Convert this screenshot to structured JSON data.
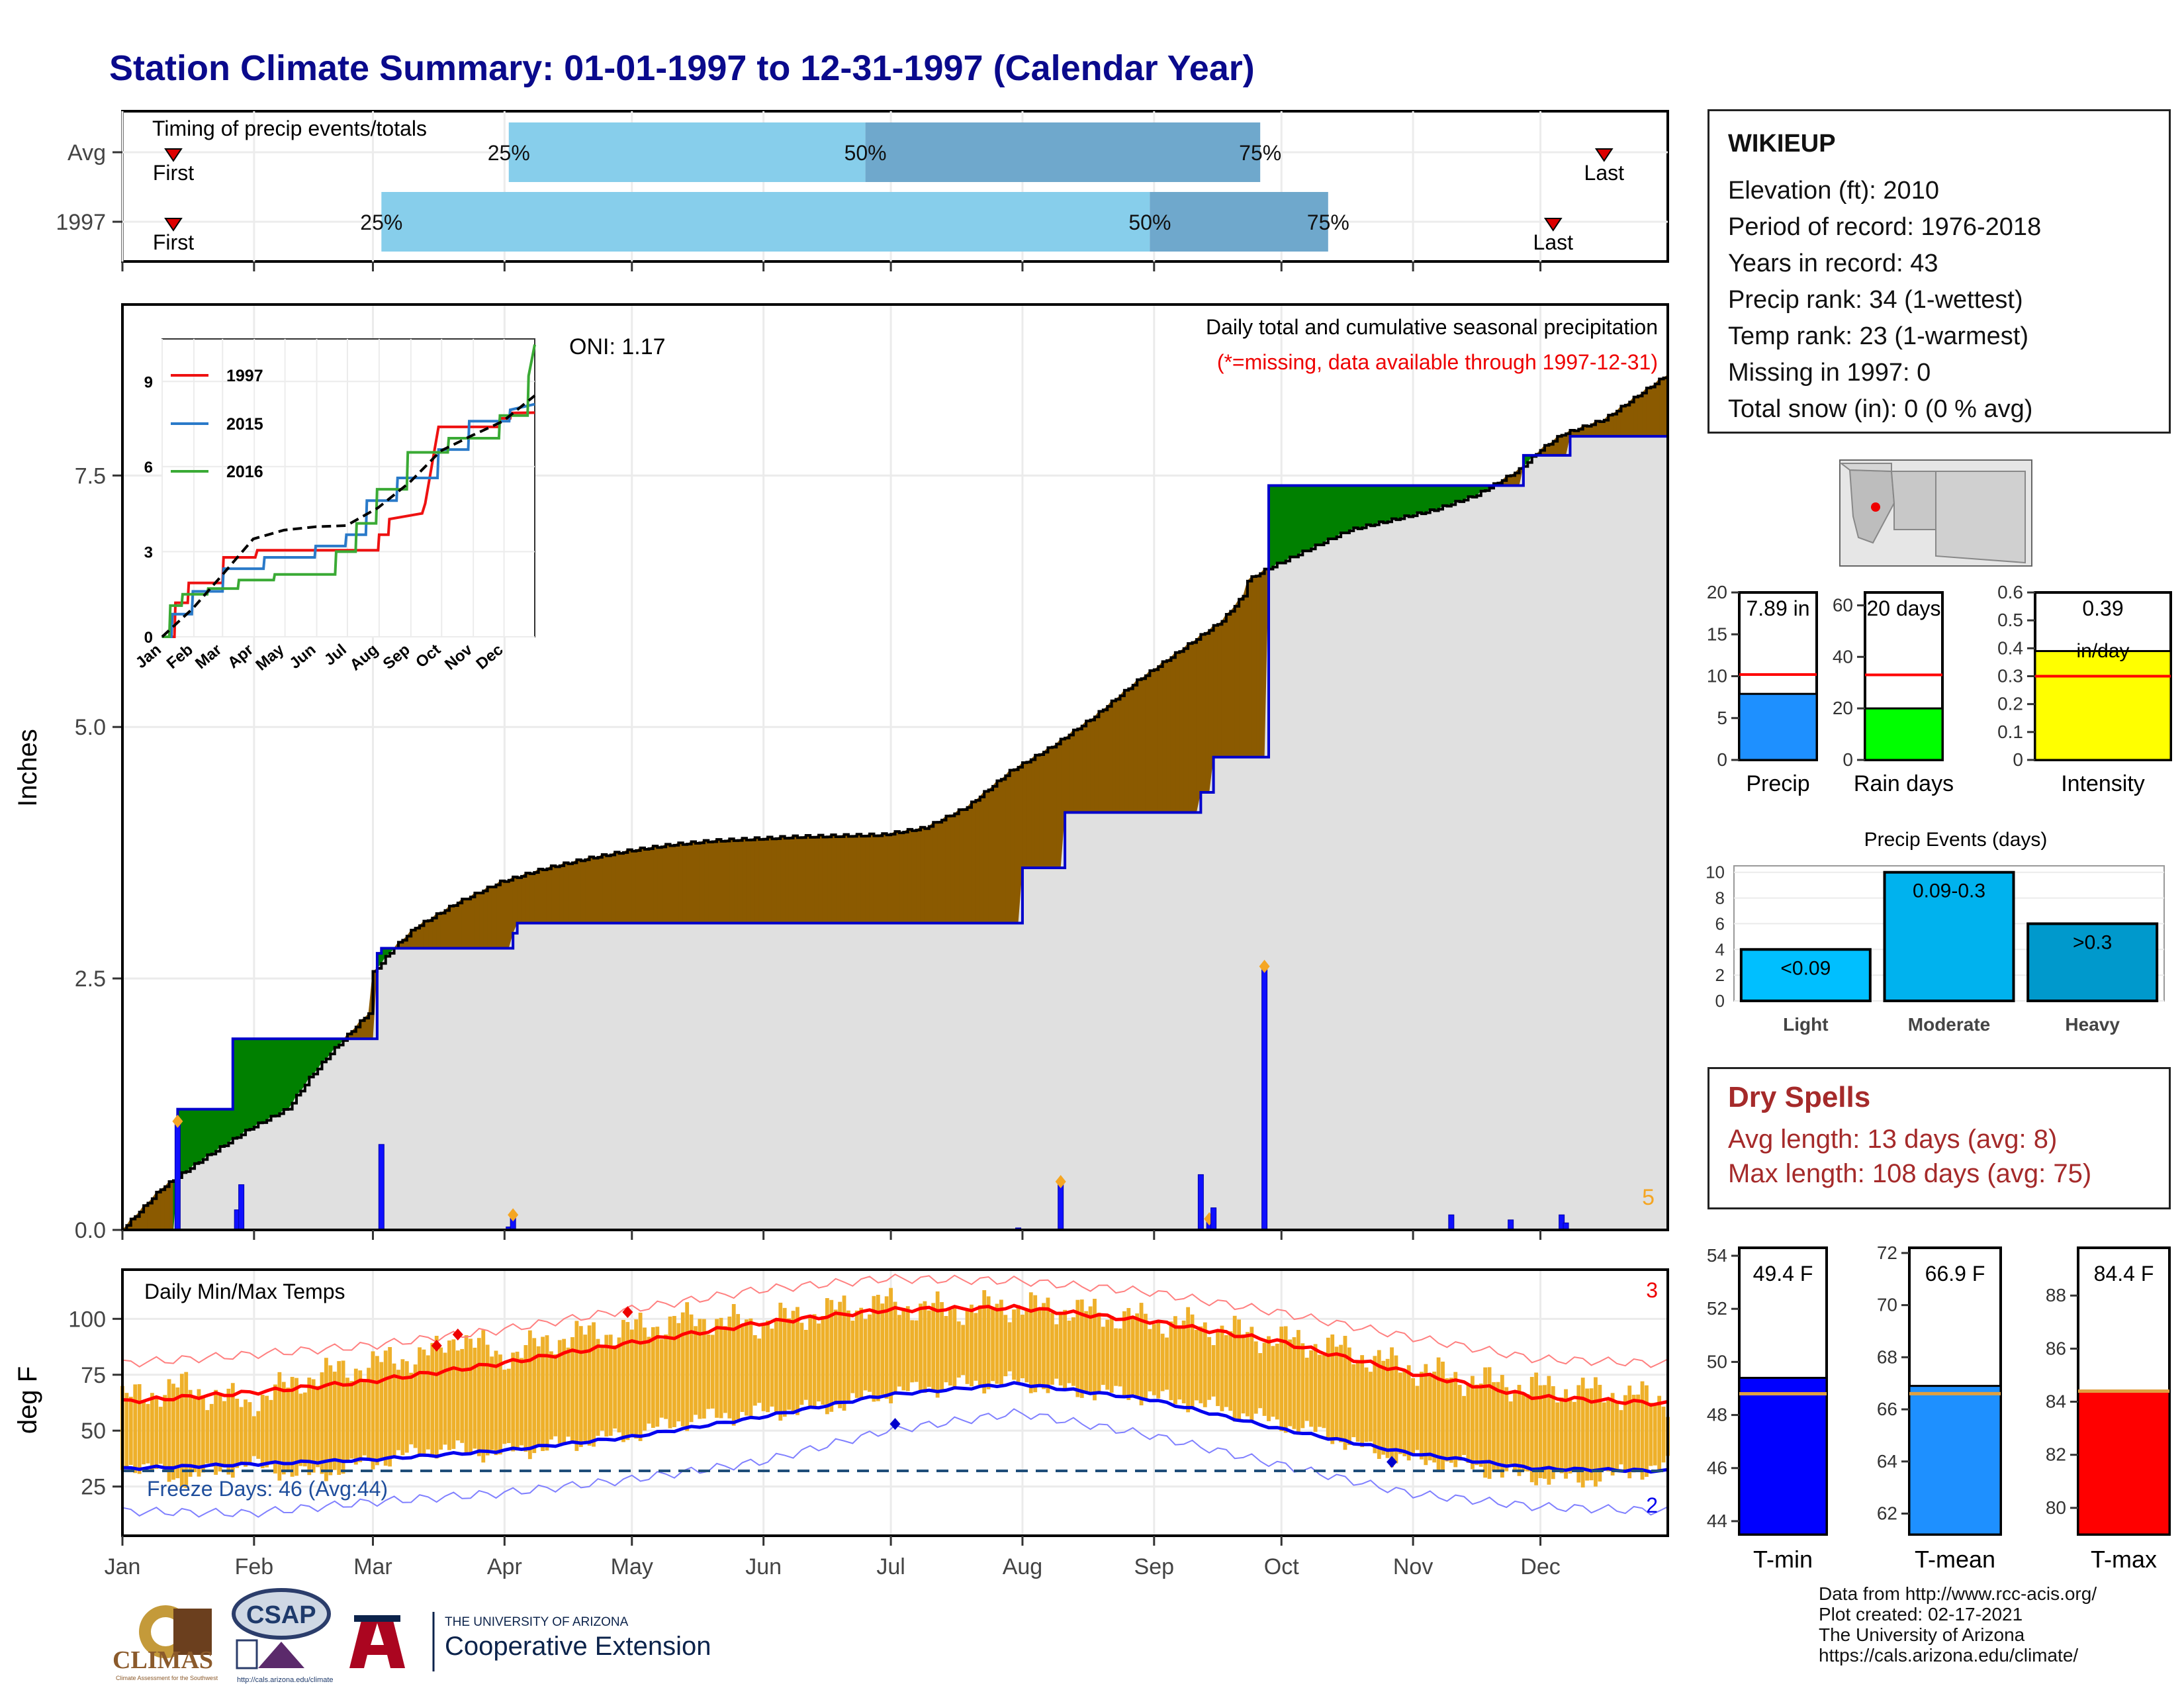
{
  "title": "Station Climate Summary: 01-01-1997 to 12-31-1997 (Calendar Year)",
  "colors": {
    "title": "#0a0a8c",
    "cum_obs": "#0000cc",
    "above_avg": "#008000",
    "below_avg": "#8b5a00",
    "fill_area": "#e0e0e0",
    "daily_bar": "#1010ff",
    "big_event": "#f5a623",
    "temp_band": "#eeb02a",
    "tmax_line": "#ff0000",
    "tmin_line": "#0000ee",
    "freeze_line": "#1f4e79",
    "light_blue": "#87ceeb",
    "mid_blue": "#6fa8cc",
    "precip_gauge": "#1e90ff",
    "raindays_gauge": "#00ff00",
    "intensity_gauge": "#ffff00",
    "light_bar": "#00bfff",
    "moderate_bar": "#00b2ee",
    "heavy_bar": "#0099cc",
    "dry_text": "#a52a2a"
  },
  "months": [
    "Jan",
    "Feb",
    "Mar",
    "Apr",
    "May",
    "Jun",
    "Jul",
    "Aug",
    "Sep",
    "Oct",
    "Nov",
    "Dec"
  ],
  "timing": {
    "label": "Timing of precip events/totals",
    "rows": [
      {
        "label": "Avg",
        "first_day": 13,
        "last_day": 350,
        "p25": 92,
        "p50": 176,
        "p75": 269
      },
      {
        "label": "1997",
        "first_day": 13,
        "last_day": 338,
        "p25": 62,
        "p50": 243,
        "p75": 285
      }
    ],
    "pct_labels": [
      "25%",
      "50%",
      "75%"
    ],
    "first_label": "First",
    "last_label": "Last"
  },
  "precip_panel": {
    "ylabel": "Inches",
    "ytick_labels": [
      "0.0",
      "2.5",
      "5.0",
      "7.5"
    ],
    "yticks": [
      0,
      2.5,
      5.0,
      7.5
    ],
    "ylim": [
      0,
      9.2
    ],
    "oni": "ONI: 1.17",
    "subtitle": "Daily total and cumulative seasonal precipitation",
    "missing_note": "(*=missing, data available through 1997-12-31)",
    "corner_count": "5"
  },
  "chart_data": [
    {
      "type": "area",
      "name": "cumulative precipitation",
      "x_unit": "day of year",
      "series": [
        {
          "name": "avg_cumulative",
          "x": [
            1,
            10,
            20,
            31,
            40,
            45,
            50,
            59,
            60,
            65,
            70,
            80,
            90,
            100,
            110,
            120,
            130,
            140,
            150,
            160,
            170,
            180,
            190,
            200,
            210,
            220,
            230,
            240,
            250,
            260,
            265,
            266,
            270,
            275,
            280,
            290,
            300,
            310,
            320,
            330,
            335,
            340,
            350,
            355,
            360,
            365
          ],
          "y": [
            0,
            0.4,
            0.7,
            1.0,
            1.2,
            1.5,
            1.75,
            2.15,
            2.55,
            2.8,
            3.0,
            3.25,
            3.45,
            3.58,
            3.68,
            3.76,
            3.82,
            3.86,
            3.88,
            3.9,
            3.91,
            3.92,
            3.99,
            4.2,
            4.55,
            4.8,
            5.1,
            5.45,
            5.75,
            6.05,
            6.3,
            6.45,
            6.55,
            6.65,
            6.75,
            6.95,
            7.05,
            7.15,
            7.3,
            7.55,
            7.75,
            7.9,
            8.05,
            8.2,
            8.35,
            8.5
          ]
        },
        {
          "name": "obs_1997_cumulative",
          "x": [
            1,
            13,
            14,
            26,
            27,
            60,
            61,
            62,
            92,
            93,
            94,
            212,
            213,
            222,
            223,
            254,
            255,
            257,
            258,
            270,
            271,
            330,
            331,
            341,
            342,
            365
          ],
          "y": [
            0,
            0,
            1.2,
            1.2,
            1.9,
            1.9,
            2.75,
            2.8,
            2.8,
            2.95,
            3.05,
            3.05,
            3.6,
            3.6,
            4.15,
            4.15,
            4.35,
            4.35,
            4.7,
            4.7,
            7.4,
            7.4,
            7.7,
            7.7,
            7.89,
            7.89
          ]
        }
      ]
    },
    {
      "type": "bar",
      "name": "daily precipitation",
      "x_unit": "day of year",
      "days": [
        14,
        28,
        29,
        62,
        92,
        93,
        212,
        222,
        255,
        257,
        258,
        270,
        314,
        328,
        340,
        341
      ],
      "values": [
        1.08,
        0.2,
        0.45,
        0.85,
        0.03,
        0.15,
        0.02,
        0.48,
        0.55,
        0.11,
        0.22,
        2.62,
        0.15,
        0.1,
        0.15,
        0.07
      ]
    },
    {
      "type": "line",
      "name": "inset cumulative",
      "xticks": [
        "Jan",
        "Feb",
        "Mar",
        "Apr",
        "May",
        "Jun",
        "Jul",
        "Aug",
        "Sep",
        "Oct",
        "Nov",
        "Dec"
      ],
      "yticks": [
        0,
        3,
        6,
        9
      ],
      "ylim": [
        0,
        10.5
      ],
      "series": [
        {
          "name": "1997",
          "x": [
            1,
            13,
            14,
            26,
            27,
            60,
            61,
            92,
            94,
            212,
            213,
            222,
            223,
            255,
            258,
            271,
            330,
            331,
            341,
            342,
            365
          ],
          "y": [
            0,
            0,
            1.2,
            1.2,
            1.9,
            1.9,
            2.8,
            2.8,
            3.05,
            3.05,
            3.6,
            3.6,
            4.15,
            4.35,
            4.7,
            7.4,
            7.4,
            7.7,
            7.7,
            7.89,
            7.9
          ]
        },
        {
          "name": "2015",
          "x": [
            1,
            10,
            11,
            30,
            31,
            60,
            61,
            100,
            101,
            150,
            151,
            180,
            181,
            200,
            201,
            230,
            231,
            270,
            271,
            300,
            301,
            340,
            341,
            365
          ],
          "y": [
            0,
            0,
            0.8,
            0.8,
            1.6,
            1.6,
            2.4,
            2.4,
            2.8,
            2.8,
            3.2,
            3.2,
            3.6,
            3.6,
            4.8,
            4.8,
            5.6,
            5.6,
            6.6,
            6.6,
            7.6,
            7.6,
            8.0,
            8.2
          ]
        },
        {
          "name": "2016",
          "x": [
            1,
            8,
            9,
            20,
            21,
            45,
            46,
            75,
            76,
            110,
            111,
            170,
            171,
            190,
            191,
            210,
            211,
            240,
            241,
            280,
            281,
            330,
            331,
            358,
            359,
            365
          ],
          "y": [
            0,
            0,
            1.1,
            1.1,
            1.5,
            1.5,
            1.7,
            1.7,
            2.0,
            2.0,
            2.2,
            2.2,
            3.0,
            3.0,
            4.0,
            4.0,
            5.2,
            5.2,
            6.5,
            6.5,
            7.0,
            7.0,
            7.8,
            7.8,
            9.2,
            10.3
          ]
        },
        {
          "name": "avg",
          "x": [
            1,
            31,
            59,
            90,
            120,
            151,
            181,
            212,
            243,
            273,
            304,
            334,
            365
          ],
          "y": [
            0,
            1.0,
            2.15,
            3.45,
            3.76,
            3.88,
            3.92,
            4.55,
            5.45,
            6.55,
            7.1,
            7.6,
            8.5
          ]
        }
      ]
    },
    {
      "type": "line",
      "name": "daily min/max temps",
      "ylabel": "deg F",
      "yticks": [
        25,
        50,
        75,
        100
      ],
      "ylim": [
        3,
        122
      ],
      "x_unit": "day of year",
      "series": [
        {
          "name": "tmax_normal",
          "x": [
            1,
            31,
            59,
            90,
            120,
            151,
            181,
            212,
            243,
            273,
            304,
            334,
            365
          ],
          "y": [
            63,
            67,
            72,
            80,
            89,
            98,
            104,
            105,
            99,
            90,
            76,
            65,
            62
          ]
        },
        {
          "name": "tmin_normal",
          "x": [
            1,
            31,
            59,
            90,
            120,
            151,
            181,
            212,
            243,
            273,
            304,
            334,
            365
          ],
          "y": [
            33,
            35,
            37,
            41,
            47,
            56,
            66,
            71,
            64,
            51,
            40,
            33,
            32
          ]
        },
        {
          "name": "tmax_record",
          "x": [
            1,
            31,
            59,
            90,
            120,
            151,
            181,
            212,
            243,
            273,
            304,
            334,
            365
          ],
          "y": [
            80,
            84,
            88,
            95,
            104,
            113,
            118,
            117,
            112,
            103,
            92,
            82,
            80
          ]
        },
        {
          "name": "tmin_record",
          "x": [
            1,
            31,
            59,
            90,
            120,
            151,
            181,
            212,
            243,
            273,
            304,
            334,
            365
          ],
          "y": [
            14,
            13,
            18,
            22,
            28,
            36,
            50,
            58,
            48,
            35,
            22,
            16,
            14
          ]
        },
        {
          "name": "tmax_1997",
          "x": [
            1,
            15,
            30,
            45,
            60,
            75,
            80,
            90,
            105,
            120,
            135,
            150,
            165,
            180,
            195,
            210,
            225,
            240,
            255,
            270,
            285,
            300,
            315,
            330,
            345,
            365
          ],
          "y": [
            64,
            70,
            62,
            74,
            80,
            85,
            93,
            83,
            92,
            95,
            100,
            98,
            103,
            107,
            104,
            106,
            104,
            100,
            97,
            92,
            88,
            80,
            74,
            70,
            68,
            64
          ]
        },
        {
          "name": "tmin_1997",
          "x": [
            1,
            15,
            30,
            45,
            60,
            75,
            90,
            105,
            120,
            135,
            150,
            165,
            180,
            195,
            210,
            225,
            240,
            255,
            270,
            285,
            300,
            315,
            330,
            345,
            365
          ],
          "y": [
            36,
            28,
            35,
            30,
            36,
            42,
            40,
            44,
            48,
            55,
            58,
            60,
            66,
            70,
            72,
            68,
            66,
            62,
            55,
            48,
            38,
            35,
            30,
            28,
            34
          ]
        }
      ],
      "freeze_line": 32,
      "freeze_label": "Freeze Days: 46 (Avg:44)",
      "corner_top": "3",
      "corner_bottom": "2",
      "panel_label": "Daily Min/Max Temps"
    },
    {
      "type": "bar",
      "name": "precip gauges",
      "gauges": [
        {
          "label": "Precip",
          "value": 7.89,
          "avg": 10.2,
          "text": "7.89 in",
          "yticks": [
            0,
            5,
            10,
            15,
            20
          ],
          "ylim": [
            0,
            20
          ]
        },
        {
          "label": "Rain days",
          "value": 20,
          "avg": 33,
          "text": "20 days",
          "yticks": [
            0,
            20,
            40,
            60
          ],
          "ylim": [
            0,
            65
          ]
        },
        {
          "label": "Intensity",
          "value": 0.39,
          "avg": 0.3,
          "text": "0.39",
          "subtext": "in/day",
          "yticks": [
            0.0,
            0.1,
            0.2,
            0.3,
            0.4,
            0.5,
            0.6
          ],
          "ylim": [
            0,
            0.6
          ]
        }
      ]
    },
    {
      "type": "bar",
      "name": "Precip Events (days)",
      "title": "Precip Events (days)",
      "categories": [
        "Light",
        "Moderate",
        "Heavy"
      ],
      "bar_labels": [
        "<0.09",
        "0.09-0.3",
        ">0.3"
      ],
      "values": [
        4,
        10,
        6
      ],
      "yticks": [
        0,
        2,
        4,
        6,
        8,
        10
      ],
      "ylim": [
        0,
        10.5
      ]
    },
    {
      "type": "bar",
      "name": "temperature gauges",
      "gauges": [
        {
          "label": "T-min",
          "value": 49.4,
          "avg": 48.8,
          "text": "49.4 F",
          "yticks": [
            44,
            46,
            48,
            50,
            52,
            54
          ],
          "ylim": [
            43.5,
            54.3
          ]
        },
        {
          "label": "T-mean",
          "value": 66.9,
          "avg": 66.6,
          "text": "66.9 F",
          "yticks": [
            62,
            64,
            66,
            68,
            70,
            72
          ],
          "ylim": [
            61.2,
            72.2
          ]
        },
        {
          "label": "T-max",
          "value": 84.4,
          "avg": 84.4,
          "text": "84.4 F",
          "yticks": [
            80,
            82,
            84,
            86,
            88
          ],
          "ylim": [
            79,
            89.8
          ]
        }
      ]
    }
  ],
  "station": {
    "name": "WIKIEUP",
    "lines": [
      "Elevation (ft): 2010",
      "Period of record: 1976-2018",
      "Years in record: 43",
      "Precip rank: 34 (1-wettest)",
      "Temp rank: 23 (1-warmest)",
      "Missing in 1997: 0",
      "Total snow (in): 0 (0 % avg)"
    ]
  },
  "dry_spells": {
    "title": "Dry Spells",
    "avg_length": "Avg length: 13 days (avg: 8)",
    "max_length": "Max length: 108 days (avg: 75)"
  },
  "credits": [
    "Data from http://www.rcc-acis.org/",
    "Plot created: 02-17-2021",
    "The University of Arizona",
    "https://cals.arizona.edu/climate/"
  ],
  "logos": {
    "climas": "CLIMAS",
    "climas_sub": "Climate Assessment for the Southwest",
    "csap": "CSAP",
    "csap_url": "http://cals.arizona.edu/climate",
    "ua_small": "THE UNIVERSITY OF ARIZONA",
    "ua_big": "Cooperative Extension"
  }
}
